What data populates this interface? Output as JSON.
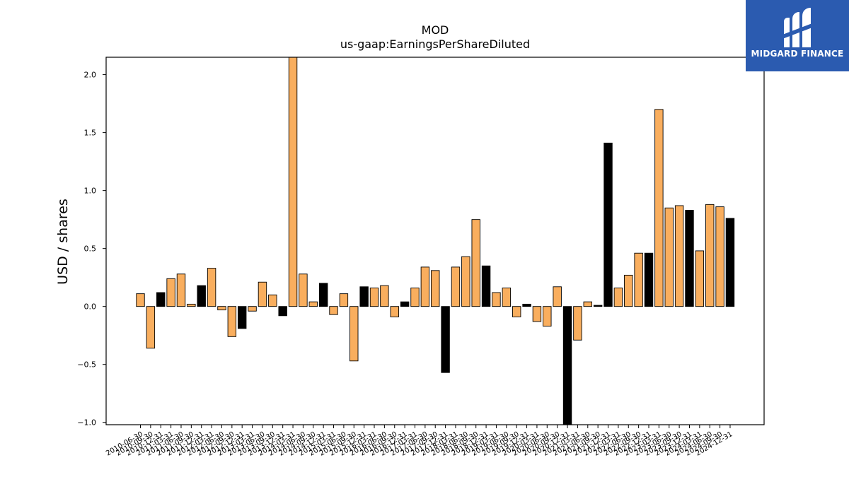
{
  "chart_data": {
    "type": "bar",
    "title": "MOD",
    "subtitle": "us-gaap:EarningsPerShareDiluted",
    "xlabel": "",
    "ylabel": "USD / shares",
    "ylim": [
      -1.02,
      2.15
    ],
    "yticks": [
      -1.0,
      -0.5,
      0.0,
      0.5,
      1.0,
      1.5,
      2.0
    ],
    "ytick_labels": [
      "−1.0",
      "−0.5",
      "0.0",
      "0.5",
      "1.0",
      "1.5",
      "2.0"
    ],
    "grid": false,
    "colors": {
      "orange": "#f9ae5e",
      "black": "#000000"
    },
    "categories": [
      "2010-06-30",
      "2010-09-30",
      "2010-12-31",
      "2011-03-31",
      "2011-06-30",
      "2011-09-30",
      "2011-12-31",
      "2012-03-31",
      "2012-06-30",
      "2012-09-30",
      "2012-12-31",
      "2013-03-31",
      "2013-06-30",
      "2013-09-30",
      "2013-12-31",
      "2014-03-31",
      "2014-06-30",
      "2014-09-30",
      "2014-12-31",
      "2015-03-31",
      "2015-06-30",
      "2015-09-30",
      "2015-12-31",
      "2016-03-31",
      "2016-06-30",
      "2016-09-30",
      "2016-12-31",
      "2017-03-31",
      "2017-06-30",
      "2017-09-30",
      "2017-12-31",
      "2018-03-31",
      "2018-06-30",
      "2018-09-30",
      "2018-12-31",
      "2019-03-31",
      "2019-06-30",
      "2019-09-30",
      "2019-12-31",
      "2020-03-31",
      "2020-06-30",
      "2020-09-30",
      "2020-12-31",
      "2021-03-31",
      "2021-06-30",
      "2021-09-30",
      "2021-12-31",
      "2022-03-31",
      "2022-06-30",
      "2022-09-30",
      "2022-12-31",
      "2023-03-31",
      "2023-06-30",
      "2023-09-30",
      "2023-12-31",
      "2024-03-31",
      "2024-06-30",
      "2024-09-30",
      "2024-12-31"
    ],
    "values": [
      0.11,
      -0.36,
      0.12,
      0.24,
      0.28,
      0.02,
      0.18,
      0.33,
      -0.03,
      -0.26,
      -0.19,
      -0.04,
      0.21,
      0.1,
      -0.08,
      2.15,
      0.28,
      0.04,
      0.2,
      -0.07,
      0.11,
      -0.47,
      0.17,
      0.16,
      0.18,
      -0.09,
      0.04,
      0.16,
      0.34,
      0.31,
      -0.57,
      0.34,
      0.43,
      0.75,
      0.35,
      0.12,
      0.16,
      -0.09,
      0.02,
      -0.13,
      -0.17,
      0.17,
      -1.02,
      -0.29,
      0.04,
      0.01,
      1.41,
      0.16,
      0.27,
      0.46,
      0.46,
      1.7,
      0.85,
      0.87,
      0.83,
      0.48,
      0.88,
      0.86,
      0.76
    ],
    "bar_colors": [
      "orange",
      "orange",
      "black",
      "orange",
      "orange",
      "orange",
      "black",
      "orange",
      "orange",
      "orange",
      "black",
      "orange",
      "orange",
      "orange",
      "black",
      "orange",
      "orange",
      "orange",
      "black",
      "orange",
      "orange",
      "orange",
      "black",
      "orange",
      "orange",
      "orange",
      "black",
      "orange",
      "orange",
      "orange",
      "black",
      "orange",
      "orange",
      "orange",
      "black",
      "orange",
      "orange",
      "orange",
      "black",
      "orange",
      "orange",
      "orange",
      "black",
      "orange",
      "orange",
      "black",
      "black",
      "orange",
      "orange",
      "orange",
      "black",
      "orange",
      "orange",
      "orange",
      "black",
      "orange",
      "orange",
      "orange",
      "black"
    ]
  },
  "logo": {
    "text": "MIDGARD FINANCE"
  }
}
